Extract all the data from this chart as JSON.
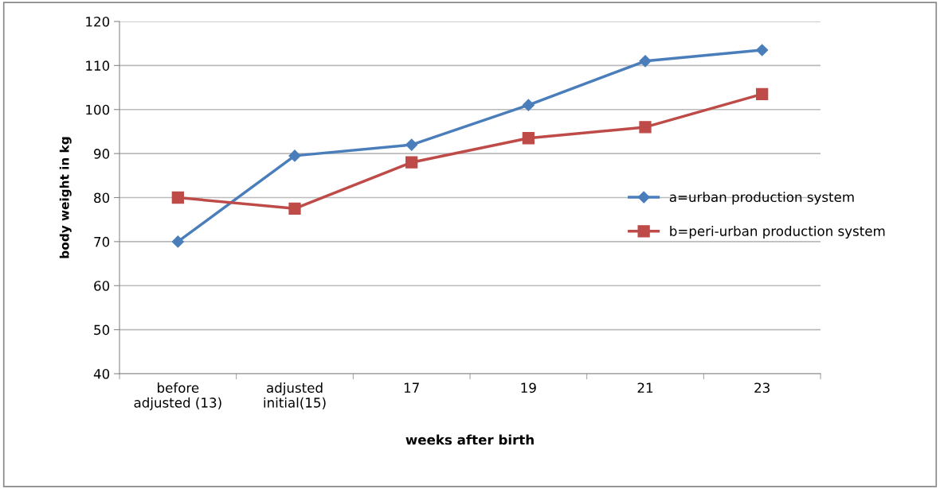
{
  "chart_data": {
    "type": "line",
    "xlabel": "weeks after birth",
    "ylabel": "body weight in kg",
    "categories": [
      "before\nadjusted (13)",
      "adjusted\ninitial(15)",
      "17",
      "19",
      "21",
      "23"
    ],
    "series": [
      {
        "name": "a=urban production system",
        "color": "#4a7ebb",
        "marker": "diamond",
        "values": [
          70,
          89.5,
          92,
          101,
          111,
          113.5
        ]
      },
      {
        "name": "b=peri-urban production system",
        "color": "#be4b48",
        "marker": "square",
        "values": [
          80,
          77.5,
          88,
          93.5,
          96,
          103.5
        ]
      }
    ],
    "ylim": [
      40,
      120
    ],
    "yticks": [
      40,
      50,
      60,
      70,
      80,
      90,
      100,
      110,
      120
    ],
    "grid": "y",
    "legend": "right",
    "line_style": "solid"
  }
}
